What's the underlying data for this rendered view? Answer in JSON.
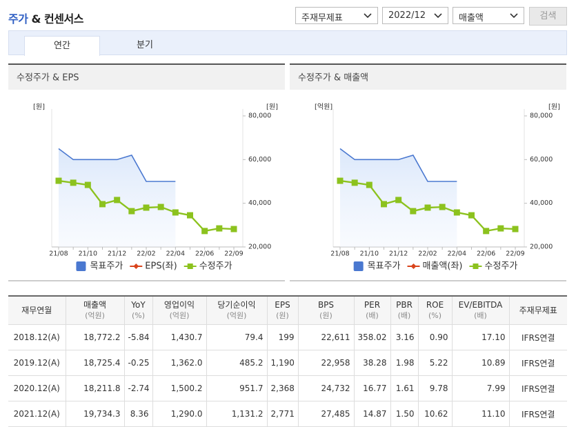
{
  "header": {
    "title_highlight": "주가",
    "title_rest": "& 컨센서스"
  },
  "controls": {
    "selects": [
      "주재무제표",
      "2022/12",
      "매출액"
    ],
    "button": "검색"
  },
  "tabs": [
    "연간",
    "분기"
  ],
  "chart_data": [
    {
      "type": "line",
      "title": "수정주가 & EPS",
      "y_label": "[원]",
      "y2_label": "[원]",
      "categories": [
        "21/08",
        null,
        "21/10",
        null,
        "21/12",
        null,
        "22/02",
        null,
        "22/04",
        null,
        "22/06",
        null,
        "22/09"
      ],
      "series": [
        {
          "name": "목표주가",
          "color": "#4a78d0",
          "style": "area",
          "axis": "y2",
          "values": [
            65000,
            60000,
            60000,
            60000,
            60000,
            62000,
            50000,
            50000,
            50000,
            null,
            null,
            null,
            null
          ]
        },
        {
          "name": "EPS(좌)",
          "color": "#d9441c",
          "style": "marker-line",
          "marker": "diamond",
          "axis": "y",
          "values": [
            null,
            null,
            null,
            null,
            null,
            null,
            null,
            null,
            null,
            null,
            null,
            null,
            null
          ]
        },
        {
          "name": "수정주가",
          "color": "#8cc21e",
          "style": "marker-line",
          "marker": "square",
          "axis": "y2",
          "values": [
            50300,
            49400,
            48400,
            39600,
            41500,
            36400,
            38000,
            38300,
            35800,
            34500,
            27300,
            28500,
            28200
          ]
        }
      ],
      "y2lim": [
        20000,
        80000
      ],
      "y2ticks": [
        {
          "value": 20000,
          "label": "20,000"
        },
        {
          "value": 40000,
          "label": "40,000"
        },
        {
          "value": 60000,
          "label": "60,000"
        },
        {
          "value": 80000,
          "label": "80,000"
        }
      ]
    },
    {
      "type": "line",
      "title": "수정주가 & 매출액",
      "y_label": "[억원]",
      "y2_label": "[원]",
      "categories": [
        "21/08",
        null,
        "21/10",
        null,
        "21/12",
        null,
        "22/02",
        null,
        "22/04",
        null,
        "22/06",
        null,
        "22/09"
      ],
      "series": [
        {
          "name": "목표주가",
          "color": "#4a78d0",
          "style": "area",
          "axis": "y2",
          "values": [
            65000,
            60000,
            60000,
            60000,
            60000,
            62000,
            50000,
            50000,
            50000,
            null,
            null,
            null,
            null
          ]
        },
        {
          "name": "매출액(좌)",
          "color": "#d9441c",
          "style": "marker-line",
          "marker": "diamond",
          "axis": "y",
          "values": [
            null,
            null,
            null,
            null,
            null,
            null,
            null,
            null,
            null,
            null,
            null,
            null,
            null
          ]
        },
        {
          "name": "수정주가",
          "color": "#8cc21e",
          "style": "marker-line",
          "marker": "square",
          "axis": "y2",
          "values": [
            50300,
            49400,
            48400,
            39600,
            41500,
            36400,
            38000,
            38300,
            35800,
            34500,
            27300,
            28500,
            28200
          ]
        }
      ],
      "y2lim": [
        20000,
        80000
      ],
      "y2ticks": [
        {
          "value": 20000,
          "label": "20,000"
        },
        {
          "value": 40000,
          "label": "40,000"
        },
        {
          "value": 60000,
          "label": "60,000"
        },
        {
          "value": 80000,
          "label": "80,000"
        }
      ]
    }
  ],
  "table": {
    "columns": [
      {
        "name": "재무연월"
      },
      {
        "name": "매출액",
        "unit": "(억원)"
      },
      {
        "name": "YoY",
        "unit": "(%)"
      },
      {
        "name": "영업이익",
        "unit": "(억원)"
      },
      {
        "name": "당기순이익",
        "unit": "(억원)"
      },
      {
        "name": "EPS",
        "unit": "(원)"
      },
      {
        "name": "BPS",
        "unit": "(원)"
      },
      {
        "name": "PER",
        "unit": "(배)"
      },
      {
        "name": "PBR",
        "unit": "(배)"
      },
      {
        "name": "ROE",
        "unit": "(%)"
      },
      {
        "name": "EV/EBITDA",
        "unit": "(배)"
      },
      {
        "name": "주재무제표"
      }
    ],
    "rows": [
      [
        "2018.12(A)",
        "18,772.2",
        "-5.84",
        "1,430.7",
        "79.4",
        "199",
        "22,611",
        "358.02",
        "3.16",
        "0.90",
        "17.10",
        "IFRS연결"
      ],
      [
        "2019.12(A)",
        "18,725.4",
        "-0.25",
        "1,362.0",
        "485.2",
        "1,190",
        "22,958",
        "38.28",
        "1.98",
        "5.22",
        "10.89",
        "IFRS연결"
      ],
      [
        "2020.12(A)",
        "18,211.8",
        "-2.74",
        "1,500.2",
        "951.7",
        "2,368",
        "24,732",
        "16.77",
        "1.61",
        "9.78",
        "7.99",
        "IFRS연결"
      ],
      [
        "2021.12(A)",
        "19,734.3",
        "8.36",
        "1,290.0",
        "1,131.2",
        "2,771",
        "27,485",
        "14.87",
        "1.50",
        "10.62",
        "11.10",
        "IFRS연결"
      ]
    ]
  }
}
